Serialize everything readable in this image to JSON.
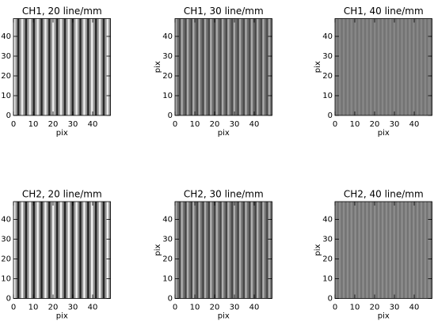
{
  "chart_data": [
    {
      "type": "image",
      "title": "CH1, 20 line/mm",
      "xlabel": "pix",
      "xlim": [
        0,
        49
      ],
      "ylim": [
        0,
        49
      ],
      "xticks": [
        0,
        10,
        20,
        30,
        40
      ],
      "yticks": [
        0,
        10,
        20,
        30,
        40
      ],
      "values": [
        235,
        150,
        40,
        150,
        235,
        150,
        40,
        150,
        235,
        150,
        40,
        150,
        235,
        150,
        40,
        150,
        235,
        150,
        40,
        150,
        235,
        150,
        40,
        150,
        235,
        150,
        40,
        150,
        235,
        150,
        40,
        150,
        235,
        150,
        40,
        150,
        235,
        150,
        40,
        150,
        235,
        150,
        40,
        150,
        235,
        150,
        40,
        150,
        235,
        150
      ]
    },
    {
      "type": "image",
      "title": "CH1, 30 line/mm",
      "xlabel": "pix",
      "ylabel": "pix",
      "xlim": [
        0,
        49
      ],
      "ylim": [
        0,
        49
      ],
      "xticks": [
        0,
        10,
        20,
        30,
        40
      ],
      "yticks": [
        0,
        10,
        20,
        30,
        40
      ],
      "values": [
        170,
        110,
        75,
        170,
        110,
        75,
        170,
        110,
        75,
        170,
        110,
        75,
        170,
        110,
        75,
        170,
        110,
        75,
        170,
        110,
        75,
        170,
        110,
        75,
        170,
        110,
        75,
        170,
        110,
        75,
        170,
        110,
        75,
        170,
        110,
        75,
        170,
        110,
        75,
        170,
        110,
        75,
        170,
        110,
        75,
        170,
        110,
        75,
        170,
        110
      ]
    },
    {
      "type": "image",
      "title": "CH1, 40 line/mm",
      "xlabel": "pix",
      "ylabel": "pix",
      "xlim": [
        0,
        49
      ],
      "ylim": [
        0,
        49
      ],
      "xticks": [
        0,
        10,
        20,
        30,
        40
      ],
      "yticks": [
        0,
        10,
        20,
        30,
        40
      ],
      "values": [
        135,
        115,
        135,
        115,
        135,
        115,
        135,
        115,
        135,
        115,
        135,
        115,
        135,
        115,
        135,
        115,
        135,
        115,
        135,
        115,
        135,
        115,
        135,
        115,
        135,
        115,
        135,
        115,
        135,
        115,
        135,
        115,
        135,
        115,
        135,
        115,
        135,
        115,
        135,
        115,
        135,
        115,
        135,
        115,
        135,
        115,
        135,
        115,
        135,
        115
      ]
    },
    {
      "type": "image",
      "title": "CH2, 20 line/mm",
      "xlabel": "pix",
      "xlim": [
        0,
        49
      ],
      "ylim": [
        0,
        49
      ],
      "xticks": [
        0,
        10,
        20,
        30,
        40
      ],
      "yticks": [
        0,
        10,
        20,
        30,
        40
      ],
      "values": [
        240,
        145,
        35,
        145,
        240,
        145,
        35,
        145,
        240,
        145,
        35,
        145,
        240,
        145,
        35,
        145,
        240,
        145,
        35,
        145,
        240,
        145,
        35,
        145,
        240,
        145,
        35,
        145,
        240,
        145,
        35,
        145,
        240,
        145,
        35,
        145,
        240,
        145,
        35,
        145,
        240,
        145,
        35,
        145,
        240,
        145,
        35,
        145,
        240,
        145
      ]
    },
    {
      "type": "image",
      "title": "CH2, 30 line/mm",
      "xlabel": "pix",
      "ylabel": "pix",
      "xlim": [
        0,
        49
      ],
      "ylim": [
        0,
        49
      ],
      "xticks": [
        0,
        10,
        20,
        30,
        40
      ],
      "yticks": [
        0,
        10,
        20,
        30,
        40
      ],
      "values": [
        175,
        115,
        70,
        175,
        115,
        70,
        175,
        115,
        70,
        175,
        115,
        70,
        175,
        115,
        70,
        175,
        115,
        70,
        175,
        115,
        70,
        175,
        115,
        70,
        175,
        115,
        70,
        175,
        115,
        70,
        175,
        115,
        70,
        175,
        115,
        70,
        175,
        115,
        70,
        175,
        115,
        70,
        175,
        115,
        70,
        175,
        115,
        70,
        175,
        115
      ]
    },
    {
      "type": "image",
      "title": "CH2, 40 line/mm",
      "xlabel": "pix",
      "ylabel": "pix",
      "xlim": [
        0,
        49
      ],
      "ylim": [
        0,
        49
      ],
      "xticks": [
        0,
        10,
        20,
        30,
        40
      ],
      "yticks": [
        0,
        10,
        20,
        30,
        40
      ],
      "values": [
        140,
        115,
        140,
        115,
        140,
        115,
        140,
        115,
        140,
        115,
        140,
        115,
        140,
        115,
        140,
        115,
        140,
        115,
        140,
        115,
        140,
        115,
        140,
        115,
        140,
        115,
        140,
        115,
        140,
        115,
        140,
        115,
        140,
        115,
        140,
        115,
        140,
        115,
        140,
        115,
        140,
        115,
        140,
        115,
        140,
        115,
        140,
        115,
        140,
        115
      ]
    }
  ]
}
